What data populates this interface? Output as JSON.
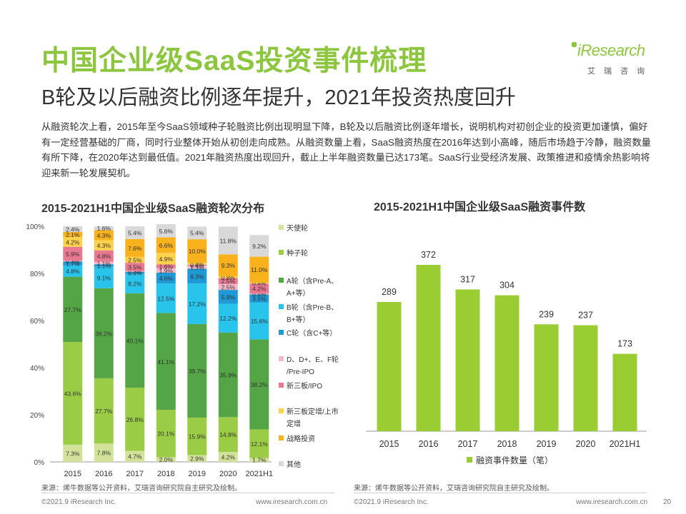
{
  "header": {
    "title": "中国企业级SaaS投资事件梳理",
    "subtitle": "B轮及以后融资比例逐年提升，2021年投资热度回升",
    "logo_text": "iResearch",
    "logo_cn": "艾瑞咨询"
  },
  "intro": "从融资轮次上看，2015年至今SaaS领域种子轮融资比例出现明显下降，B轮及以后融资比例逐年增长，说明机构对初创企业的投资更加谨慎，偏好有一定经营基础的厂商，同时行业整体开始从初创走向成熟。从融资数量上看，SaaS融资热度在2016年达到小高峰，随后市场趋于冷静，融资数量有所下降，在2020年达到最低值。2021年融资热度出现回升，截止上半年融资数量已达173笔。SaaS行业受经济发展、政策推进和疫情余热影响将迎来新一轮发展契机。",
  "chart_data": [
    {
      "type": "bar",
      "stacked": true,
      "title": "2015-2021H1中国企业级SaaS融资轮次分布",
      "categories": [
        "2015",
        "2016",
        "2017",
        "2018",
        "2019",
        "2020",
        "2021H1"
      ],
      "yticks": [
        "0%",
        "20%",
        "40%",
        "60%",
        "80%",
        "100%"
      ],
      "ylim": [
        0,
        100
      ],
      "legend_position": "right",
      "series": [
        {
          "name": "天使轮",
          "color": "#d3e29a",
          "values": [
            7.3,
            7.8,
            4.7,
            2.0,
            2.9,
            4.2,
            1.7
          ]
        },
        {
          "name": "种子轮",
          "color": "#9acd45",
          "values": [
            43.6,
            27.7,
            26.8,
            20.1,
            15.9,
            14.8,
            12.1
          ]
        },
        {
          "name": "A轮（含Pre-A、A+等）",
          "color": "#53a545",
          "values": [
            27.7,
            38.2,
            40.1,
            41.1,
            39.7,
            35.9,
            38.2
          ]
        },
        {
          "name": "B轮（含Pre-B、B+等）",
          "color": "#29c4ec",
          "values": [
            4.8,
            9.1,
            8.2,
            12.5,
            17.2,
            12.2,
            15.6
          ]
        },
        {
          "name": "C轮（含C+等）",
          "color": "#1f9ad6",
          "values": [
            1.7,
            1.1,
            0.9,
            4.6,
            6.3,
            5.9,
            3.5
          ]
        },
        {
          "name": "D、D+、E、F轮/Pre-IPO",
          "color": "#f4b8c8",
          "values": [
            0.3,
            1.1,
            0.3,
            1.9,
            1.3,
            2.5,
            0.4
          ]
        },
        {
          "name": "新三板/IPO",
          "color": "#e97891",
          "values": [
            5.9,
            4.8,
            3.5,
            1.6,
            0.4,
            2.5,
            4.2
          ]
        },
        {
          "name": "新三板定增/上市定增",
          "color": "#ffd24d",
          "values": [
            4.2,
            4.3,
            2.5,
            4.9,
            0.8,
            0.8,
            0.4
          ]
        },
        {
          "name": "战略投资",
          "color": "#f9b21b",
          "values": [
            2.1,
            4.3,
            7.6,
            6.6,
            10.0,
            9.3,
            11.0
          ]
        },
        {
          "name": "其他",
          "color": "#d9d9d9",
          "values": [
            2.4,
            1.6,
            5.4,
            5.6,
            5.4,
            11.8,
            9.2
          ]
        }
      ]
    },
    {
      "type": "bar",
      "title": "2015-2021H1中国企业级SaaS融资事件数",
      "categories": [
        "2015",
        "2016",
        "2017",
        "2018",
        "2019",
        "2020",
        "2021H1"
      ],
      "series": [
        {
          "name": "融资事件数量（笔）",
          "color": "#9acd32",
          "values": [
            289,
            372,
            317,
            304,
            239,
            237,
            173
          ]
        }
      ],
      "legend_position": "bottom"
    }
  ],
  "sources": {
    "left": "来源：烯牛数据等公开资料，艾瑞咨询研究院自主研究及绘制。",
    "right": "来源：烯牛数据等公开资料，艾瑞咨询研究院自主研究及绘制。"
  },
  "footer": {
    "copyright": "©2021.9 iResearch Inc.",
    "url": "www.iresearch.com.cn",
    "page": "20"
  }
}
